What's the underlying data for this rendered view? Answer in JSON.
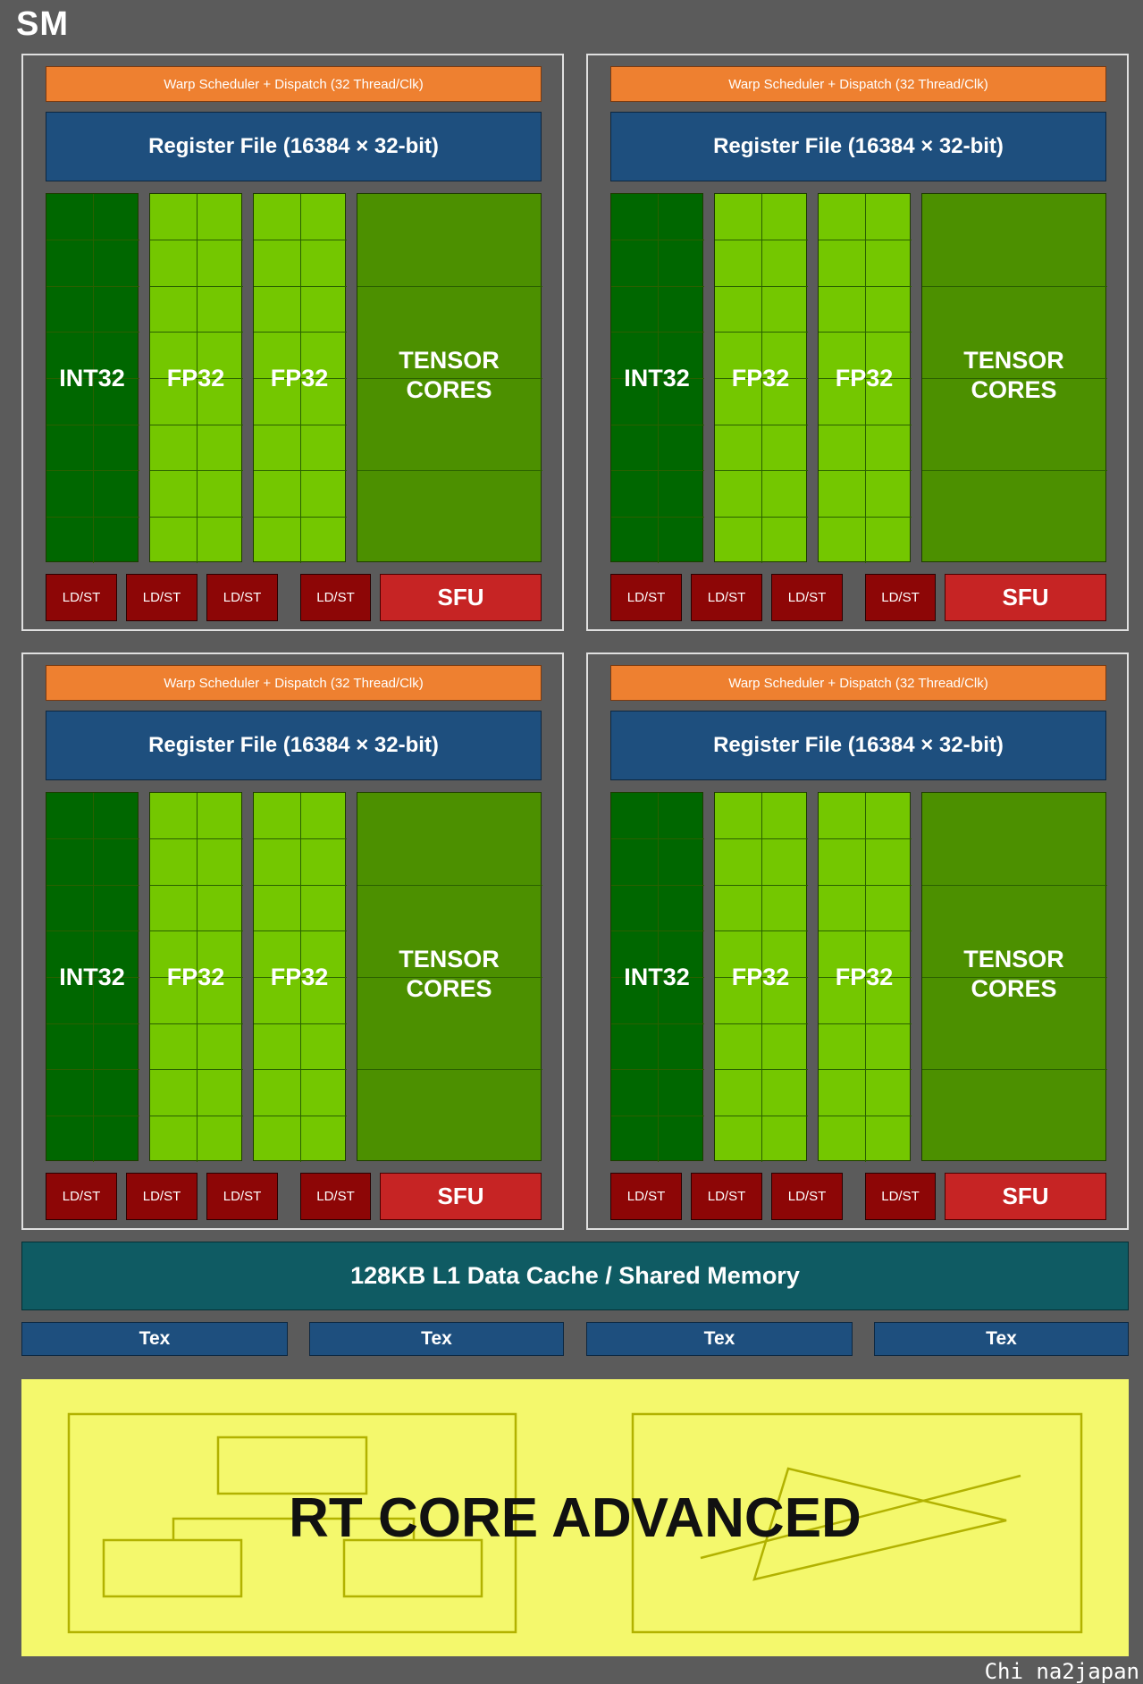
{
  "title": "SM",
  "quadrants": [
    {
      "warp_scheduler": "Warp Scheduler + Dispatch (32 Thread/Clk)",
      "register_file": "Register File (16384 × 32-bit)",
      "int_unit": "INT32",
      "fp_units": [
        "FP32",
        "FP32"
      ],
      "tensor_cores": [
        "TENSOR",
        "CORES"
      ],
      "ldst_units": [
        "LD/ST",
        "LD/ST",
        "LD/ST",
        "LD/ST"
      ],
      "sfu": "SFU"
    },
    {
      "warp_scheduler": "Warp Scheduler + Dispatch (32 Thread/Clk)",
      "register_file": "Register File (16384 × 32-bit)",
      "int_unit": "INT32",
      "fp_units": [
        "FP32",
        "FP32"
      ],
      "tensor_cores": [
        "TENSOR",
        "CORES"
      ],
      "ldst_units": [
        "LD/ST",
        "LD/ST",
        "LD/ST",
        "LD/ST"
      ],
      "sfu": "SFU"
    },
    {
      "warp_scheduler": "Warp Scheduler + Dispatch (32 Thread/Clk)",
      "register_file": "Register File (16384 × 32-bit)",
      "int_unit": "INT32",
      "fp_units": [
        "FP32",
        "FP32"
      ],
      "tensor_cores": [
        "TENSOR",
        "CORES"
      ],
      "ldst_units": [
        "LD/ST",
        "LD/ST",
        "LD/ST",
        "LD/ST"
      ],
      "sfu": "SFU"
    },
    {
      "warp_scheduler": "Warp Scheduler + Dispatch (32 Thread/Clk)",
      "register_file": "Register File (16384 × 32-bit)",
      "int_unit": "INT32",
      "fp_units": [
        "FP32",
        "FP32"
      ],
      "tensor_cores": [
        "TENSOR",
        "CORES"
      ],
      "ldst_units": [
        "LD/ST",
        "LD/ST",
        "LD/ST",
        "LD/ST"
      ],
      "sfu": "SFU"
    }
  ],
  "l1_cache": "128KB L1 Data Cache / Shared Memory",
  "tex_units": [
    "Tex",
    "Tex",
    "Tex",
    "Tex"
  ],
  "rt_core": "RT CORE ADVANCED",
  "watermark": "Chi na2japan",
  "colors": {
    "background": "#5b5b5b",
    "warp_scheduler": "#ee8030",
    "register_file": "#1e4f7e",
    "int32": "#006700",
    "fp32": "#74c700",
    "tensor": "#4c9000",
    "ldst": "#8d0606",
    "sfu": "#c62424",
    "l1_cache": "#0f5b63",
    "rt_core": "#f4f86c"
  }
}
